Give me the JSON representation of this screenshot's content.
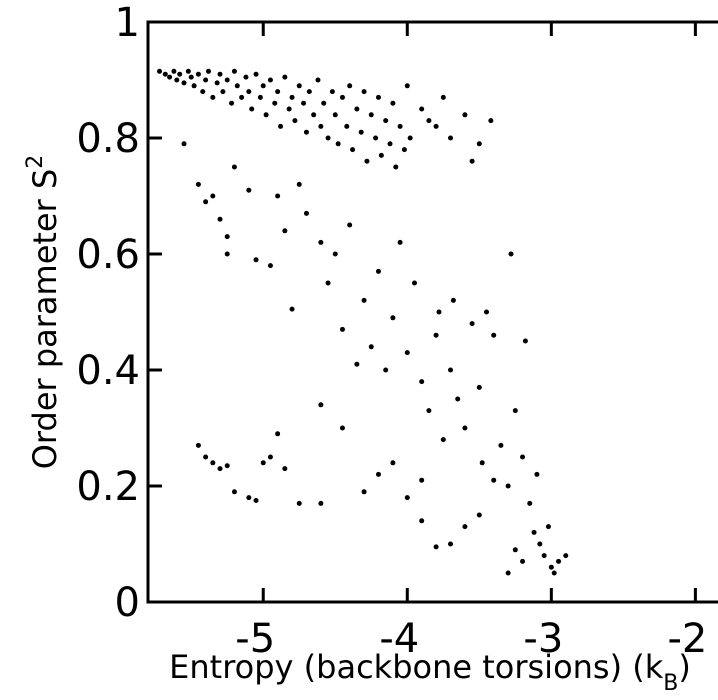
{
  "chart_data": {
    "type": "scatter",
    "xlabel": "Entropy (backbone torsions) (k",
    "xlabel_sub": "B",
    "xlabel_end": ")",
    "ylabel": "Order parameter S",
    "ylabel_sup": "2",
    "xlim": [
      -5.8,
      -1.85
    ],
    "ylim": [
      0,
      1
    ],
    "xticks": [
      -5,
      -4,
      -3,
      -2
    ],
    "yticks": [
      0,
      0.2,
      0.4,
      0.6,
      0.8,
      1
    ],
    "color": "#000000",
    "x": [
      -5.72,
      -5.68,
      -5.65,
      -5.62,
      -5.6,
      -5.58,
      -5.55,
      -5.52,
      -5.5,
      -5.48,
      -5.45,
      -5.42,
      -5.4,
      -5.38,
      -5.35,
      -5.32,
      -5.3,
      -5.28,
      -5.25,
      -5.22,
      -5.2,
      -5.18,
      -5.15,
      -5.12,
      -5.1,
      -5.08,
      -5.05,
      -5.02,
      -5.0,
      -4.98,
      -4.95,
      -4.92,
      -4.9,
      -4.88,
      -4.85,
      -4.82,
      -4.8,
      -4.78,
      -4.75,
      -4.72,
      -4.7,
      -4.68,
      -4.65,
      -4.62,
      -4.6,
      -4.58,
      -4.55,
      -4.52,
      -4.5,
      -4.48,
      -4.45,
      -4.42,
      -4.4,
      -4.38,
      -4.35,
      -4.32,
      -4.3,
      -4.28,
      -4.25,
      -4.22,
      -4.2,
      -4.18,
      -4.15,
      -4.12,
      -4.1,
      -4.08,
      -4.05,
      -4.02,
      -4.0,
      -3.98,
      -3.9,
      -3.85,
      -3.8,
      -3.75,
      -3.7,
      -3.6,
      -3.5,
      -3.42,
      -3.55,
      -5.55,
      -5.45,
      -5.4,
      -5.35,
      -5.3,
      -5.25,
      -5.25,
      -5.2,
      -5.1,
      -5.05,
      -4.95,
      -4.9,
      -4.85,
      -4.8,
      -4.75,
      -4.7,
      -4.6,
      -4.55,
      -4.5,
      -4.45,
      -4.4,
      -4.35,
      -4.3,
      -4.25,
      -4.2,
      -4.15,
      -4.1,
      -4.05,
      -4.0,
      -3.95,
      -3.9,
      -3.85,
      -3.8,
      -3.78,
      -3.75,
      -3.7,
      -3.68,
      -3.65,
      -3.6,
      -3.55,
      -3.5,
      -3.48,
      -3.45,
      -3.4,
      -3.35,
      -3.3,
      -3.28,
      -3.25,
      -3.2,
      -3.18,
      -3.15,
      -3.12,
      -3.1,
      -3.08,
      -3.05,
      -3.02,
      -3.0,
      -2.98,
      -2.95,
      -2.9,
      -3.2,
      -3.25,
      -3.3,
      -3.6,
      -3.7,
      -3.8,
      -3.9,
      -4.0,
      -4.1,
      -4.2,
      -4.3,
      -4.6,
      -4.75,
      -4.85,
      -4.9,
      -4.95,
      -5.0,
      -5.05,
      -5.1,
      -5.2,
      -5.25,
      -5.3,
      -5.35,
      -5.4,
      -5.45,
      -4.6,
      -3.5,
      -3.4,
      -3.9,
      -4.45
    ],
    "values": [
      0.915,
      0.91,
      0.905,
      0.915,
      0.9,
      0.91,
      0.895,
      0.915,
      0.905,
      0.89,
      0.91,
      0.88,
      0.9,
      0.915,
      0.87,
      0.895,
      0.91,
      0.88,
      0.9,
      0.86,
      0.915,
      0.89,
      0.87,
      0.905,
      0.88,
      0.85,
      0.91,
      0.87,
      0.89,
      0.84,
      0.9,
      0.86,
      0.88,
      0.82,
      0.905,
      0.85,
      0.87,
      0.83,
      0.89,
      0.86,
      0.81,
      0.88,
      0.84,
      0.9,
      0.82,
      0.86,
      0.8,
      0.88,
      0.84,
      0.79,
      0.87,
      0.82,
      0.89,
      0.78,
      0.85,
      0.81,
      0.88,
      0.76,
      0.84,
      0.8,
      0.87,
      0.77,
      0.83,
      0.79,
      0.86,
      0.75,
      0.82,
      0.78,
      0.89,
      0.8,
      0.85,
      0.83,
      0.82,
      0.87,
      0.8,
      0.84,
      0.79,
      0.83,
      0.76,
      0.79,
      0.72,
      0.69,
      0.7,
      0.66,
      0.6,
      0.63,
      0.75,
      0.71,
      0.59,
      0.58,
      0.7,
      0.64,
      0.505,
      0.72,
      0.67,
      0.62,
      0.55,
      0.6,
      0.47,
      0.65,
      0.41,
      0.52,
      0.44,
      0.57,
      0.4,
      0.49,
      0.62,
      0.43,
      0.55,
      0.38,
      0.33,
      0.46,
      0.5,
      0.28,
      0.4,
      0.52,
      0.35,
      0.3,
      0.48,
      0.37,
      0.24,
      0.5,
      0.46,
      0.27,
      0.2,
      0.6,
      0.33,
      0.25,
      0.45,
      0.17,
      0.12,
      0.22,
      0.1,
      0.08,
      0.13,
      0.06,
      0.05,
      0.07,
      0.08,
      0.07,
      0.09,
      0.05,
      0.13,
      0.1,
      0.095,
      0.21,
      0.18,
      0.24,
      0.22,
      0.19,
      0.17,
      0.17,
      0.23,
      0.29,
      0.25,
      0.24,
      0.175,
      0.18,
      0.19,
      0.235,
      0.23,
      0.24,
      0.25,
      0.27,
      0.34,
      0.15,
      0.21,
      0.14,
      0.3
    ]
  }
}
